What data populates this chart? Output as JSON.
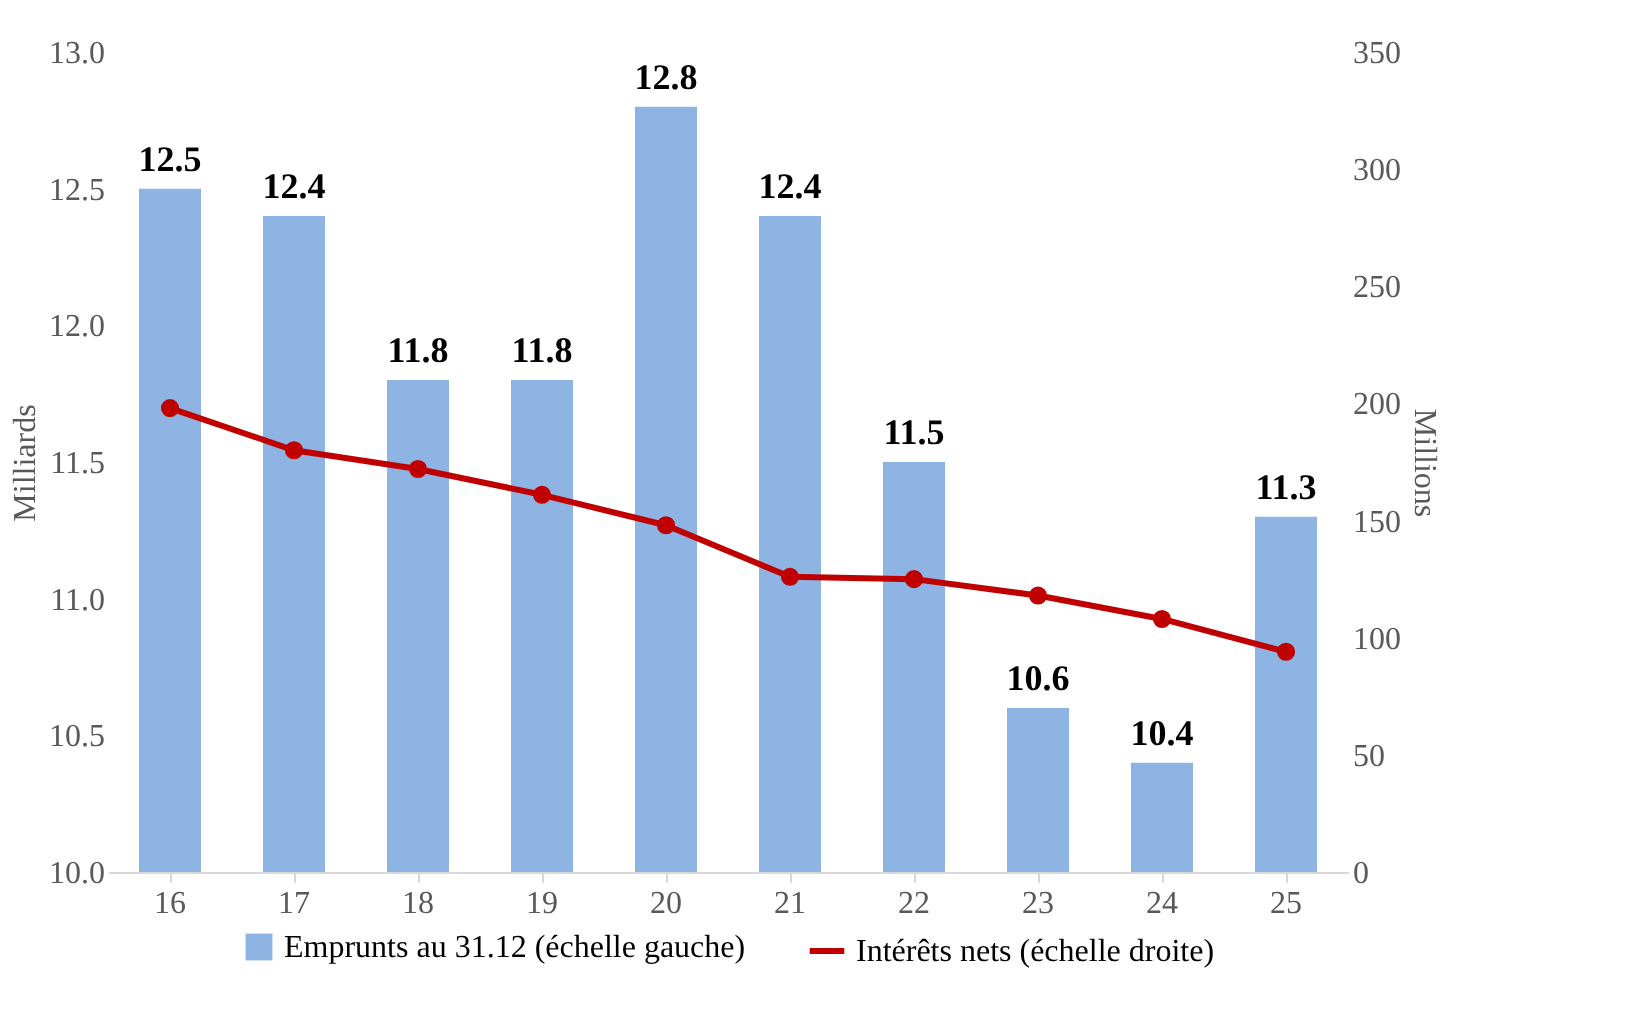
{
  "chart_data": {
    "type": "bar",
    "ylabel": "Milliards",
    "y2label": "Millions",
    "categories": [
      "16",
      "17",
      "18",
      "19",
      "20",
      "21",
      "22",
      "23",
      "24",
      "25"
    ],
    "series": [
      {
        "name": "Emprunts au 31.12 (échelle gauche)",
        "color": "#8eb4e3",
        "values": [
          12.5,
          12.4,
          11.8,
          11.8,
          12.8,
          12.4,
          11.5,
          10.6,
          10.4,
          11.3
        ],
        "value_labels": [
          "12.5",
          "12.4",
          "11.8",
          "11.8",
          "12.8",
          "12.4",
          "11.5",
          "10.6",
          "10.4",
          "11.3"
        ]
      },
      {
        "name": "Intérêts nets (échelle droite)",
        "type": "line",
        "axis": "y2",
        "color": "#c00000",
        "marker": "circle",
        "line_style": "solid",
        "values": [
          198,
          180,
          172,
          161,
          148,
          126,
          125,
          118,
          108,
          94
        ]
      }
    ],
    "ylim": [
      10,
      13
    ],
    "yticks": [
      {
        "value": 10,
        "label": "10.0"
      },
      {
        "value": 10.5,
        "label": "10.5"
      },
      {
        "value": 11,
        "label": "11.0"
      },
      {
        "value": 11.5,
        "label": "11.5"
      },
      {
        "value": 12,
        "label": "12.0"
      },
      {
        "value": 12.5,
        "label": "12.5"
      },
      {
        "value": 13,
        "label": "13.0"
      }
    ],
    "y2lim": [
      0,
      350
    ],
    "y2ticks": [
      0,
      50,
      100,
      150,
      200,
      250,
      300,
      350
    ],
    "grid": false,
    "legend": "bottom"
  }
}
